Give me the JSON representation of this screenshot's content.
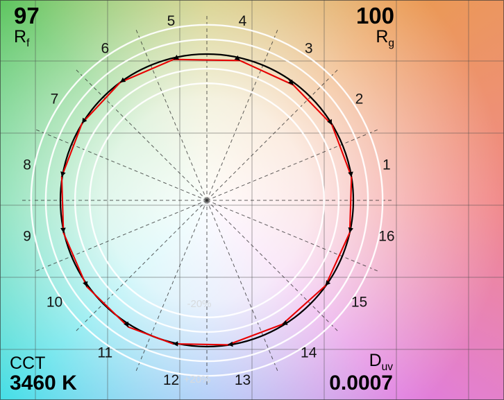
{
  "metrics": {
    "rf_value": "97",
    "rf_label_main": "R",
    "rf_label_sub": "f",
    "rg_value": "100",
    "rg_label_main": "R",
    "rg_label_sub": "g",
    "cct_label": "CCT",
    "cct_value": "3460 K",
    "duv_label_main": "D",
    "duv_label_sub": "uv",
    "duv_value": "0.0007"
  },
  "chart_data": {
    "type": "line",
    "subtype": "ies-tm30-color-vector-graphic",
    "polar": true,
    "grid": "on",
    "legend": "off",
    "metrics": {
      "Rf": 97,
      "Rg": 100,
      "CCT_K": 3460,
      "Duv": 0.0007
    },
    "hue_bin_labels": [
      "1",
      "2",
      "3",
      "4",
      "5",
      "6",
      "7",
      "8",
      "9",
      "10",
      "11",
      "12",
      "13",
      "14",
      "15",
      "16"
    ],
    "bin_center_angles_deg": [
      11.25,
      33.75,
      56.25,
      78.75,
      101.25,
      123.75,
      146.25,
      168.75,
      191.25,
      213.75,
      236.25,
      258.75,
      281.25,
      303.75,
      326.25,
      348.75
    ],
    "reference_circle_radius": 1.0,
    "ring_levels": [
      0.8,
      0.9,
      1.1,
      1.2
    ],
    "ring_labels": {
      "inner": "-20%",
      "outer": "+20%"
    },
    "test_radius_ratio": [
      1.0,
      0.998,
      0.985,
      0.982,
      0.99,
      1.0,
      1.002,
      1.004,
      1.004,
      1.01,
      1.018,
      1.008,
      0.998,
      0.992,
      0.998,
      1.0
    ],
    "test_hue_shift_deg": [
      -2,
      -2.5,
      -3,
      -2,
      2,
      2.5,
      2,
      2,
      1.5,
      2,
      2,
      -2,
      -3,
      -2.5,
      -2,
      -1.5
    ],
    "colors": {
      "reference_circle": "#000000",
      "test_polygon": "#e80000",
      "tolerance_rings": "#ffffff"
    }
  }
}
